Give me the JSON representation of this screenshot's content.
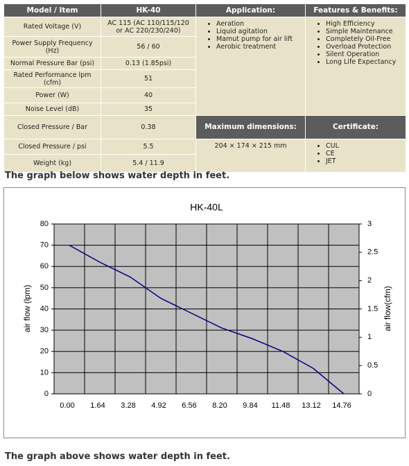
{
  "table": {
    "header": [
      "Model / Item",
      "HK-40",
      "Application:",
      "Features & Benefits:"
    ],
    "rows": [
      [
        "Rated Voltage (V)",
        "AC 115 (AC 110/115/120 or AC 220/230/240)"
      ],
      [
        "Power Supply Frequency (Hz)",
        "56 / 60"
      ],
      [
        "Normal Pressure Bar (psi)",
        "0.13 (1.85psi)"
      ],
      [
        "Rated Performance lpm (cfm)",
        "51"
      ],
      [
        "Power (W)",
        "40"
      ],
      [
        "Noise Level (dB)",
        "35"
      ],
      [
        "Closed Pressure / Bar",
        "0.38"
      ],
      [
        "Closed Pressure / psi",
        "5.5"
      ],
      [
        "Weight (kg)",
        "5.4 / 11.9"
      ]
    ],
    "application": [
      "Aeration",
      "Liquid agitation",
      "Mamut pump for air lift",
      "Aerobic treatment"
    ],
    "features": [
      "High Efficiency",
      "Simple Maintenance",
      "Completely Oil-Free",
      "Overload Protection",
      "Silent Operation",
      "Long Life Expectancy"
    ],
    "dimensions_header": "Maximum dimensions:",
    "certificate_header": "Certificate:",
    "dimensions": "204 × 174 × 215 mm",
    "certificates": [
      "CUL",
      "CE",
      "JET"
    ]
  },
  "caption_top": "The graph below shows water depth in feet.",
  "caption_bottom": "The graph above shows water depth in feet.",
  "chart_data": {
    "type": "line",
    "title": "HK-40L",
    "y_label": "air flow (lpm)",
    "y2_label": "air flow(cfm)",
    "categories": [
      "0.00",
      "1.64",
      "3.28",
      "4.92",
      "6.56",
      "8.20",
      "9.84",
      "11.48",
      "13.12",
      "14.76"
    ],
    "series": [
      {
        "name": "HK-40L",
        "color": "#000080",
        "values": [
          70,
          62,
          55,
          45,
          38,
          31,
          26,
          20,
          12,
          0
        ]
      }
    ],
    "ylim": [
      0,
      80
    ],
    "yticks": [
      0,
      10,
      20,
      30,
      40,
      50,
      60,
      70,
      80
    ],
    "y2lim": [
      0,
      3
    ],
    "y2ticks": [
      0,
      0.5,
      1,
      1.5,
      2,
      2.5,
      3
    ],
    "grid": true,
    "plot_color": "#c0c0c0"
  }
}
